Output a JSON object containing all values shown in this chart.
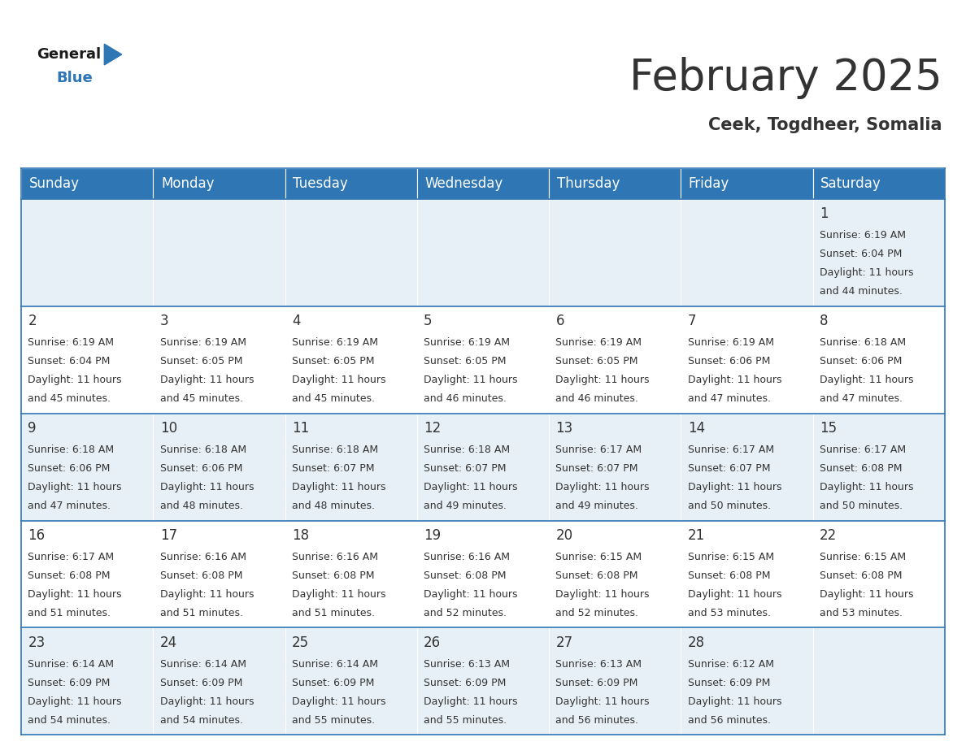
{
  "title": "February 2025",
  "subtitle": "Ceek, Togdheer, Somalia",
  "header_bg": "#2e76b4",
  "header_text_color": "#ffffff",
  "cell_bg_light": "#e8f0f7",
  "cell_bg_white": "#ffffff",
  "day_headers": [
    "Sunday",
    "Monday",
    "Tuesday",
    "Wednesday",
    "Thursday",
    "Friday",
    "Saturday"
  ],
  "days": [
    {
      "day": 1,
      "col": 6,
      "row": 0,
      "sunrise": "6:19 AM",
      "sunset": "6:04 PM",
      "daylight": "11 hours and 44 minutes."
    },
    {
      "day": 2,
      "col": 0,
      "row": 1,
      "sunrise": "6:19 AM",
      "sunset": "6:04 PM",
      "daylight": "11 hours and 45 minutes."
    },
    {
      "day": 3,
      "col": 1,
      "row": 1,
      "sunrise": "6:19 AM",
      "sunset": "6:05 PM",
      "daylight": "11 hours and 45 minutes."
    },
    {
      "day": 4,
      "col": 2,
      "row": 1,
      "sunrise": "6:19 AM",
      "sunset": "6:05 PM",
      "daylight": "11 hours and 45 minutes."
    },
    {
      "day": 5,
      "col": 3,
      "row": 1,
      "sunrise": "6:19 AM",
      "sunset": "6:05 PM",
      "daylight": "11 hours and 46 minutes."
    },
    {
      "day": 6,
      "col": 4,
      "row": 1,
      "sunrise": "6:19 AM",
      "sunset": "6:05 PM",
      "daylight": "11 hours and 46 minutes."
    },
    {
      "day": 7,
      "col": 5,
      "row": 1,
      "sunrise": "6:19 AM",
      "sunset": "6:06 PM",
      "daylight": "11 hours and 47 minutes."
    },
    {
      "day": 8,
      "col": 6,
      "row": 1,
      "sunrise": "6:18 AM",
      "sunset": "6:06 PM",
      "daylight": "11 hours and 47 minutes."
    },
    {
      "day": 9,
      "col": 0,
      "row": 2,
      "sunrise": "6:18 AM",
      "sunset": "6:06 PM",
      "daylight": "11 hours and 47 minutes."
    },
    {
      "day": 10,
      "col": 1,
      "row": 2,
      "sunrise": "6:18 AM",
      "sunset": "6:06 PM",
      "daylight": "11 hours and 48 minutes."
    },
    {
      "day": 11,
      "col": 2,
      "row": 2,
      "sunrise": "6:18 AM",
      "sunset": "6:07 PM",
      "daylight": "11 hours and 48 minutes."
    },
    {
      "day": 12,
      "col": 3,
      "row": 2,
      "sunrise": "6:18 AM",
      "sunset": "6:07 PM",
      "daylight": "11 hours and 49 minutes."
    },
    {
      "day": 13,
      "col": 4,
      "row": 2,
      "sunrise": "6:17 AM",
      "sunset": "6:07 PM",
      "daylight": "11 hours and 49 minutes."
    },
    {
      "day": 14,
      "col": 5,
      "row": 2,
      "sunrise": "6:17 AM",
      "sunset": "6:07 PM",
      "daylight": "11 hours and 50 minutes."
    },
    {
      "day": 15,
      "col": 6,
      "row": 2,
      "sunrise": "6:17 AM",
      "sunset": "6:08 PM",
      "daylight": "11 hours and 50 minutes."
    },
    {
      "day": 16,
      "col": 0,
      "row": 3,
      "sunrise": "6:17 AM",
      "sunset": "6:08 PM",
      "daylight": "11 hours and 51 minutes."
    },
    {
      "day": 17,
      "col": 1,
      "row": 3,
      "sunrise": "6:16 AM",
      "sunset": "6:08 PM",
      "daylight": "11 hours and 51 minutes."
    },
    {
      "day": 18,
      "col": 2,
      "row": 3,
      "sunrise": "6:16 AM",
      "sunset": "6:08 PM",
      "daylight": "11 hours and 51 minutes."
    },
    {
      "day": 19,
      "col": 3,
      "row": 3,
      "sunrise": "6:16 AM",
      "sunset": "6:08 PM",
      "daylight": "11 hours and 52 minutes."
    },
    {
      "day": 20,
      "col": 4,
      "row": 3,
      "sunrise": "6:15 AM",
      "sunset": "6:08 PM",
      "daylight": "11 hours and 52 minutes."
    },
    {
      "day": 21,
      "col": 5,
      "row": 3,
      "sunrise": "6:15 AM",
      "sunset": "6:08 PM",
      "daylight": "11 hours and 53 minutes."
    },
    {
      "day": 22,
      "col": 6,
      "row": 3,
      "sunrise": "6:15 AM",
      "sunset": "6:08 PM",
      "daylight": "11 hours and 53 minutes."
    },
    {
      "day": 23,
      "col": 0,
      "row": 4,
      "sunrise": "6:14 AM",
      "sunset": "6:09 PM",
      "daylight": "11 hours and 54 minutes."
    },
    {
      "day": 24,
      "col": 1,
      "row": 4,
      "sunrise": "6:14 AM",
      "sunset": "6:09 PM",
      "daylight": "11 hours and 54 minutes."
    },
    {
      "day": 25,
      "col": 2,
      "row": 4,
      "sunrise": "6:14 AM",
      "sunset": "6:09 PM",
      "daylight": "11 hours and 55 minutes."
    },
    {
      "day": 26,
      "col": 3,
      "row": 4,
      "sunrise": "6:13 AM",
      "sunset": "6:09 PM",
      "daylight": "11 hours and 55 minutes."
    },
    {
      "day": 27,
      "col": 4,
      "row": 4,
      "sunrise": "6:13 AM",
      "sunset": "6:09 PM",
      "daylight": "11 hours and 56 minutes."
    },
    {
      "day": 28,
      "col": 5,
      "row": 4,
      "sunrise": "6:12 AM",
      "sunset": "6:09 PM",
      "daylight": "11 hours and 56 minutes."
    }
  ],
  "num_rows": 5,
  "num_cols": 7,
  "title_fontsize": 38,
  "subtitle_fontsize": 15,
  "header_fontsize": 12,
  "day_num_fontsize": 12,
  "cell_text_fontsize": 9,
  "border_color": "#2e76b4",
  "text_color": "#333333",
  "logo_general_color": "#1a1a1a",
  "logo_blue_color": "#2e76b4",
  "fig_width": 11.88,
  "fig_height": 9.18,
  "dpi": 100
}
